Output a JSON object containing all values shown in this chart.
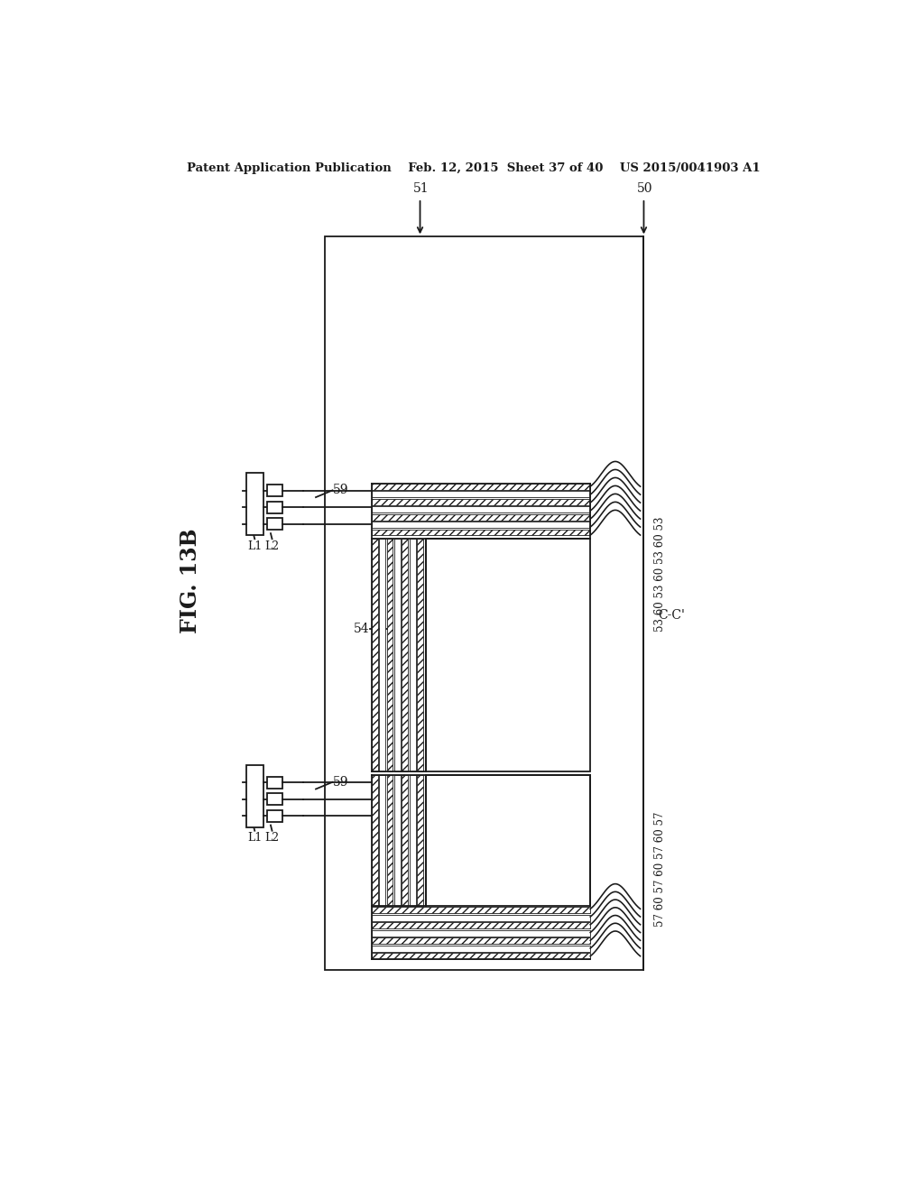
{
  "bg_color": "#ffffff",
  "lc": "#1a1a1a",
  "header": "Patent Application Publication    Feb. 12, 2015  Sheet 37 of 40    US 2015/0041903 A1",
  "fig_label": "FIG. 13B",
  "label_51": "51",
  "label_50": "50",
  "label_54": "54",
  "label_59": "59",
  "label_L1": "L1",
  "label_L2": "L2",
  "label_CC": "C-C'",
  "label_right_top": "53 60 53 60 53 60 53",
  "label_right_bot": "57 60 57 60 57 60 57",
  "n_hatch_layers": 7,
  "hatch_thickness": 10,
  "n_curve_lines": 7
}
